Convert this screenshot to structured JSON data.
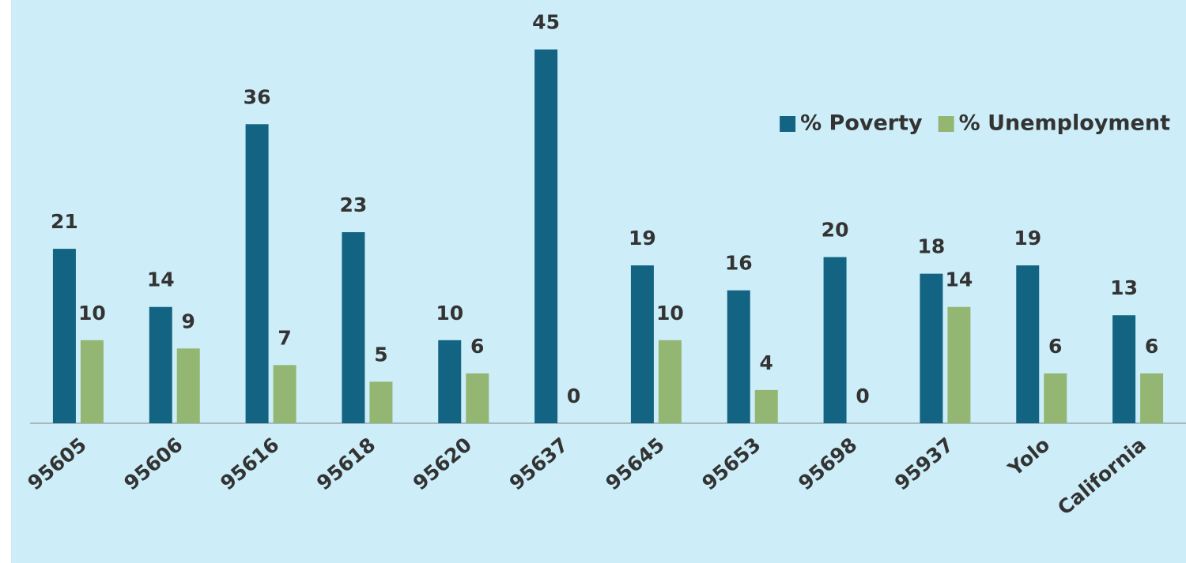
{
  "chart_data": {
    "type": "bar",
    "categories": [
      "95605",
      "95606",
      "95616",
      "95618",
      "95620",
      "95637",
      "95645",
      "95653",
      "95698",
      "95937",
      "Yolo",
      "California"
    ],
    "series": [
      {
        "name": "% Poverty",
        "color": "#136482",
        "values": [
          21,
          14,
          36,
          23,
          10,
          45,
          19,
          16,
          20,
          18,
          19,
          13
        ]
      },
      {
        "name": "% Unemployment",
        "color": "#93b672",
        "values": [
          10,
          9,
          7,
          5,
          6,
          0,
          10,
          4,
          0,
          14,
          6,
          6
        ]
      }
    ],
    "ylim": [
      0,
      50
    ],
    "legend": "upper right"
  }
}
